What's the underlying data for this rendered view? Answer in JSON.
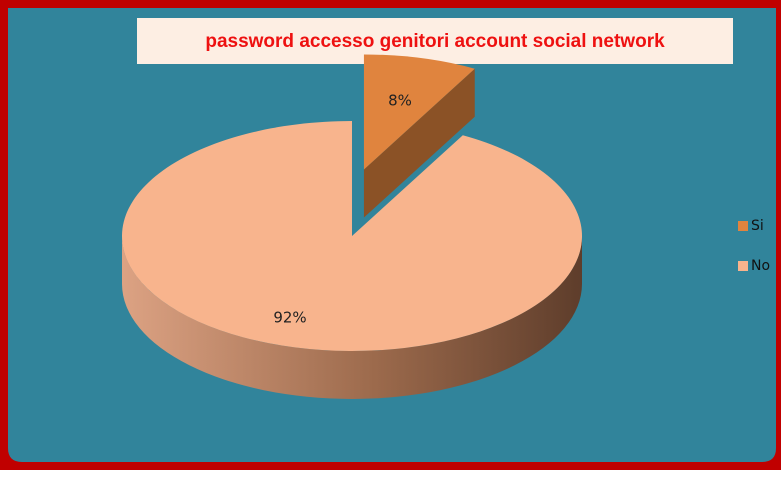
{
  "chart_data": {
    "type": "pie",
    "title": "password accesso genitori  account social network",
    "categories": [
      "Si",
      "No"
    ],
    "values": [
      8,
      92
    ],
    "value_labels": [
      "8%",
      "92%"
    ],
    "colors": [
      "#e0843e",
      "#f8b48d"
    ],
    "legend": "right"
  }
}
